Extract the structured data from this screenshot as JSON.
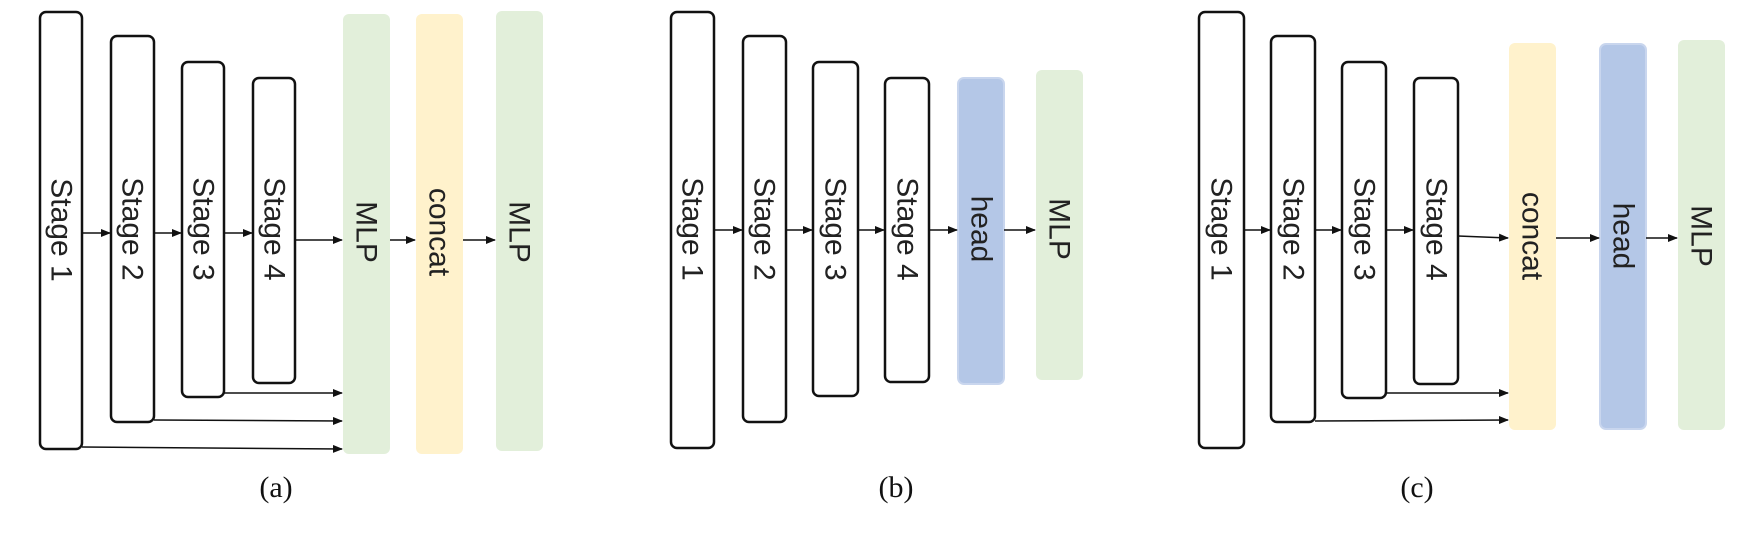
{
  "panels": [
    {
      "id": "a",
      "caption": "(a)",
      "stages": [
        "Stage 1",
        "Stage 2",
        "Stage 3",
        "Stage 4"
      ],
      "blocks": [
        "MLP",
        "concat",
        "MLP"
      ]
    },
    {
      "id": "b",
      "caption": "(b)",
      "stages": [
        "Stage 1",
        "Stage 2",
        "Stage 3",
        "Stage 4"
      ],
      "blocks": [
        "head",
        "MLP"
      ]
    },
    {
      "id": "c",
      "caption": "(c)",
      "stages": [
        "Stage 1",
        "Stage 2",
        "Stage 3",
        "Stage 4"
      ],
      "blocks": [
        "concat",
        "head",
        "MLP"
      ]
    }
  ],
  "colors": {
    "mlp": "#e2efda",
    "concat": "#fff2cc",
    "head": "#b4c7e7",
    "stroke": "#111111"
  }
}
